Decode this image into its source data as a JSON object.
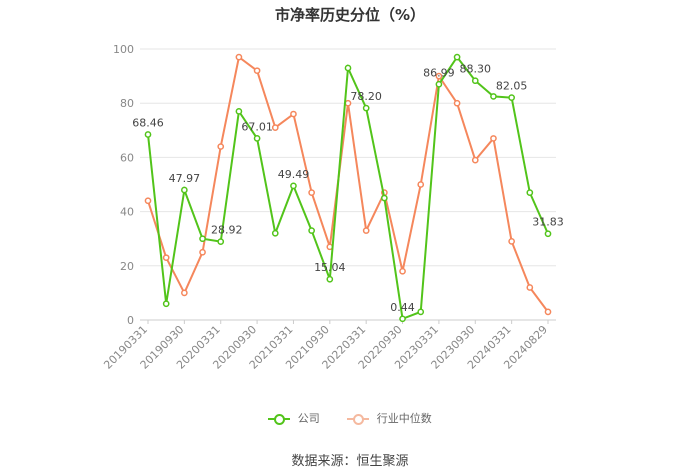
{
  "chart_data": {
    "type": "line",
    "title": "市净率历史分位（%）",
    "ylim": [
      0,
      100
    ],
    "yticks": [
      0,
      20,
      40,
      60,
      80,
      100
    ],
    "grid": true,
    "legend_position": "bottom",
    "x_tick_labels": [
      "20190331",
      "20190930",
      "20200331",
      "20200930",
      "20210331",
      "20210930",
      "20220331",
      "20220930",
      "20230331",
      "20230930",
      "20240331",
      "20240829"
    ],
    "series": [
      {
        "name": "公司",
        "color": "#52c41a",
        "values": [
          68.46,
          6,
          47.97,
          30,
          28.92,
          77,
          67.01,
          32,
          49.49,
          33,
          15.04,
          93,
          78.2,
          45,
          0.44,
          3,
          86.99,
          97,
          88.3,
          82.5,
          82.05,
          47,
          31.83
        ],
        "labels": [
          "68.46",
          "",
          "47.97",
          "",
          "28.92",
          "",
          "67.01",
          "",
          "49.49",
          "",
          "15.04",
          "",
          "78.20",
          "",
          "0.44",
          "",
          "86.99",
          "",
          "88.30",
          "",
          "82.05",
          "",
          "31.83"
        ]
      },
      {
        "name": "行业中位数",
        "color": "#f5875c",
        "values": [
          44,
          23,
          10,
          25,
          64,
          97,
          92,
          71,
          76,
          47,
          27,
          80,
          33,
          47,
          18,
          50,
          90,
          80,
          59,
          67,
          29,
          12,
          3
        ],
        "labels": []
      }
    ]
  },
  "footer": {
    "source": "数据来源：恒生聚源"
  }
}
